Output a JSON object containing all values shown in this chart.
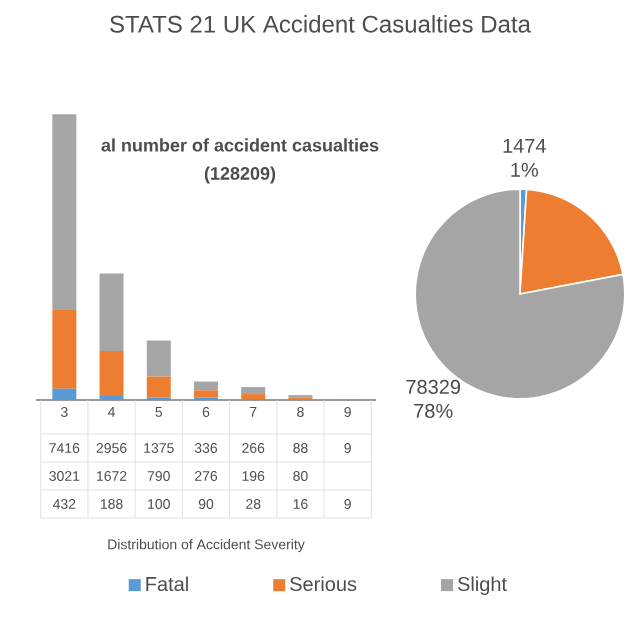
{
  "chart_data": [
    {
      "type": "bar",
      "title": "STATS 21 UK Accident Casualties Data",
      "xlabel": "Distribution of Accident Severity",
      "annotations": [
        "al number of accident casualties",
        "(128209)"
      ],
      "categories": [
        "3",
        "4",
        "5",
        "6",
        "7",
        "8",
        "9"
      ],
      "stacked": true,
      "data_labels": true,
      "legend": "bottom",
      "series": [
        {
          "name": "Fatal",
          "color": "#5b9bd5",
          "values": [
            432,
            188,
            100,
            90,
            28,
            16,
            9
          ]
        },
        {
          "name": "Serious",
          "color": "#ed7d31",
          "values": [
            3021,
            1672,
            790,
            276,
            196,
            80,
            null
          ]
        },
        {
          "name": "Slight",
          "color": "#a5a5a5",
          "values": [
            7416,
            2956,
            1375,
            336,
            266,
            88,
            9
          ]
        }
      ]
    },
    {
      "type": "pie",
      "categories": [
        null,
        null,
        null
      ],
      "values": [
        1,
        21,
        78
      ],
      "colors": [
        "#5b9bd5",
        "#ed7d31",
        "#a5a5a5"
      ],
      "value_labels": [
        "1474 1%",
        null,
        "78329 78%"
      ]
    }
  ]
}
